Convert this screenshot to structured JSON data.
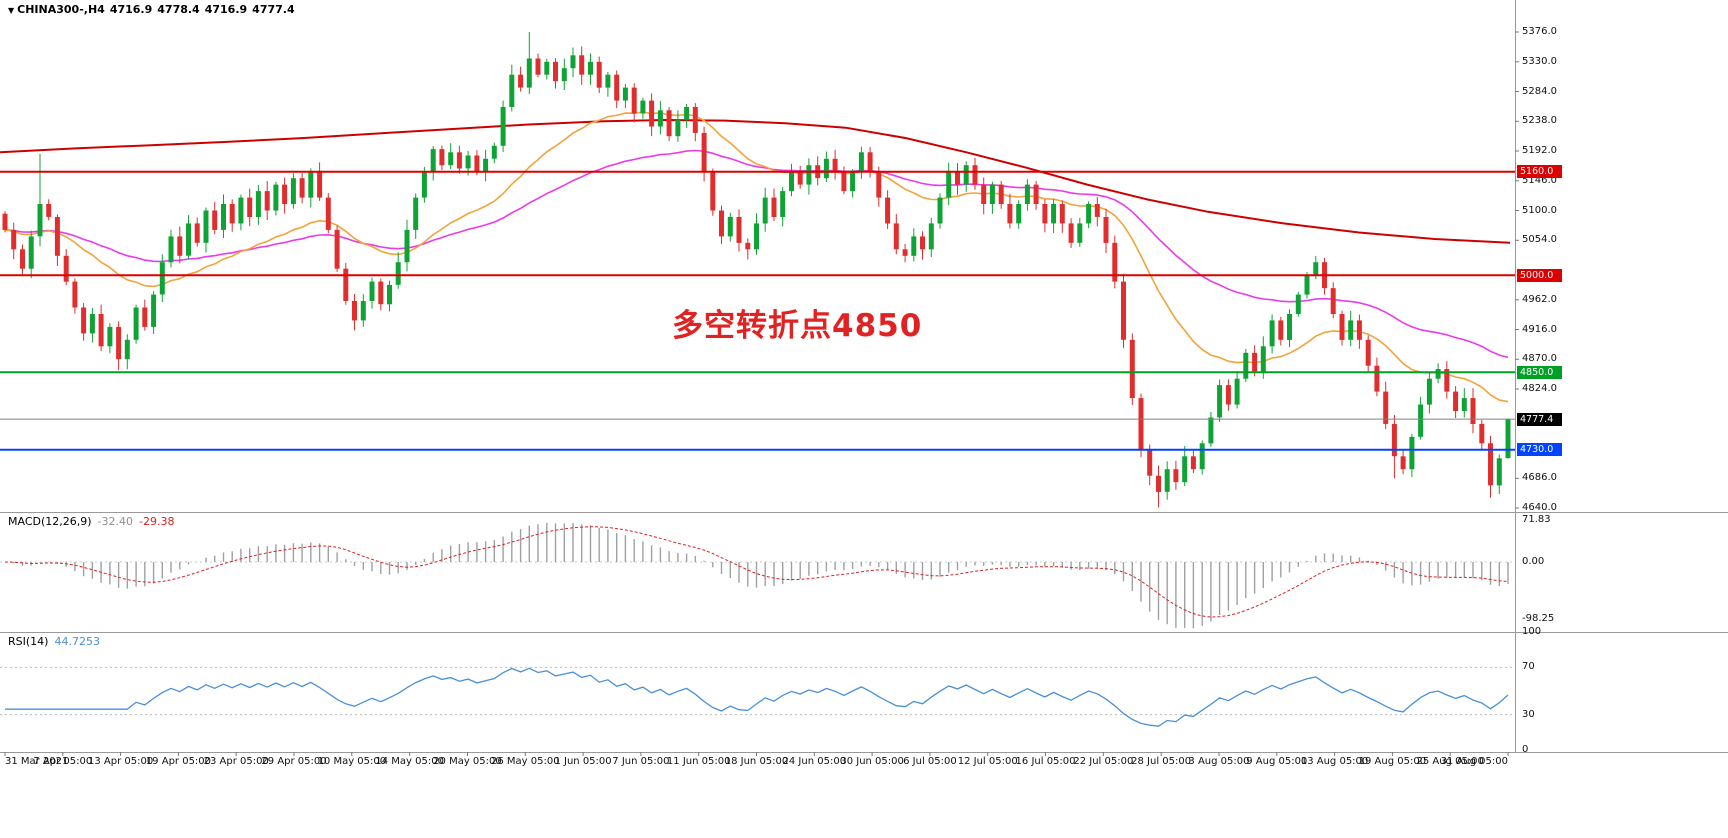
{
  "header": {
    "symbol_period": "CHINA300-,H4",
    "open": "4716.9",
    "high": "4778.4",
    "low": "4716.9",
    "close": "4777.4"
  },
  "annotation": {
    "text": "多空转折点4850",
    "color": "#e02222"
  },
  "levels": [
    {
      "price": 5160.0,
      "label": "5160.0",
      "color": "#dd0000"
    },
    {
      "price": 5000.0,
      "label": "5000.0",
      "color": "#dd0000"
    },
    {
      "price": 4850.0,
      "label": "4850.0",
      "color": "#00a024"
    },
    {
      "price": 4730.0,
      "label": "4730.0",
      "color": "#0044ff"
    }
  ],
  "current_price": {
    "value": 4777.4,
    "label": "4777.4",
    "tag_bg": "#000000",
    "line_color": "#808080"
  },
  "price_axis": {
    "min": 4640,
    "max": 5376,
    "step": 46,
    "labels": [
      "5376.0",
      "5330.0",
      "5284.0",
      "5238.0",
      "5192.0",
      "5146.0",
      "5100.0",
      "5054.0",
      "5008.0",
      "4962.0",
      "4916.0",
      "4870.0",
      "4824.0",
      "4778.0",
      "4732.0",
      "4686.0",
      "4640.0"
    ]
  },
  "time_axis": {
    "labels": [
      "31 Mar 2021",
      "7 Apr 05:00",
      "13 Apr 05:00",
      "19 Apr 05:00",
      "23 Apr 05:00",
      "29 Apr 05:00",
      "10 May 05:00",
      "14 May 05:00",
      "20 May 05:00",
      "26 May 05:00",
      "1 Jun 05:00",
      "7 Jun 05:00",
      "11 Jun 05:00",
      "18 Jun 05:00",
      "24 Jun 05:00",
      "30 Jun 05:00",
      "6 Jul 05:00",
      "12 Jul 05:00",
      "16 Jul 05:00",
      "22 Jul 05:00",
      "28 Jul 05:00",
      "3 Aug 05:00",
      "9 Aug 05:00",
      "13 Aug 05:00",
      "19 Aug 05:00",
      "25 Aug 05:00",
      "31 Aug 05:00"
    ]
  },
  "indicators": {
    "macd": {
      "label": "MACD(12,26,9)",
      "value_main": "-32.40",
      "value_signal": "-29.38",
      "fast": 12,
      "slow": 26,
      "signal": 9,
      "axis_labels": [
        "71.83",
        "0.00",
        "-98.25"
      ],
      "histogram_color": "#a0a0a0",
      "signal_color": "#dd2222"
    },
    "rsi": {
      "label": "RSI(14)",
      "value": "44.7253",
      "period": 14,
      "axis_labels": [
        "100",
        "70",
        "30",
        "0"
      ],
      "levels": [
        70,
        30
      ],
      "line_color": "#4a90d9"
    }
  },
  "moving_averages": [
    {
      "name": "fast-ma",
      "type": "ema",
      "period": 24,
      "color": "#f2a33c"
    },
    {
      "name": "medium-ma",
      "type": "ema",
      "period": 55,
      "color": "#ea3bea"
    },
    {
      "name": "slow-ma",
      "type": "anchors",
      "color": "#cc0000",
      "anchors": [
        [
          0,
          5190
        ],
        [
          0.05,
          5196
        ],
        [
          0.1,
          5201
        ],
        [
          0.15,
          5206
        ],
        [
          0.2,
          5212
        ],
        [
          0.25,
          5219
        ],
        [
          0.3,
          5226
        ],
        [
          0.35,
          5233
        ],
        [
          0.4,
          5238
        ],
        [
          0.44,
          5240
        ],
        [
          0.48,
          5239
        ],
        [
          0.52,
          5235
        ],
        [
          0.56,
          5228
        ],
        [
          0.6,
          5212
        ],
        [
          0.64,
          5190
        ],
        [
          0.68,
          5166
        ],
        [
          0.72,
          5140
        ],
        [
          0.76,
          5117
        ],
        [
          0.8,
          5098
        ],
        [
          0.85,
          5080
        ],
        [
          0.9,
          5066
        ],
        [
          0.95,
          5056
        ],
        [
          1,
          5050
        ]
      ]
    }
  ],
  "chart_data": {
    "type": "candlestick",
    "symbol": "CHINA300-",
    "timeframe": "H4",
    "price_range": [
      4640,
      5376
    ],
    "up_color": "#0fa336",
    "down_color": "#e02e2e",
    "first_open": 5095,
    "closes": [
      5070,
      5040,
      5010,
      5060,
      5110,
      5090,
      5030,
      4990,
      4950,
      4910,
      4940,
      4890,
      4920,
      4870,
      4900,
      4950,
      4920,
      4970,
      5020,
      5060,
      5030,
      5080,
      5050,
      5100,
      5070,
      5110,
      5080,
      5120,
      5090,
      5130,
      5100,
      5140,
      5110,
      5150,
      5120,
      5160,
      5120,
      5070,
      5010,
      4960,
      4930,
      4960,
      4990,
      4955,
      4985,
      5020,
      5070,
      5120,
      5160,
      5195,
      5170,
      5190,
      5165,
      5185,
      5160,
      5180,
      5200,
      5260,
      5310,
      5290,
      5335,
      5310,
      5330,
      5300,
      5320,
      5340,
      5310,
      5330,
      5290,
      5310,
      5270,
      5290,
      5250,
      5270,
      5230,
      5255,
      5215,
      5240,
      5260,
      5220,
      5160,
      5100,
      5060,
      5090,
      5050,
      5040,
      5080,
      5120,
      5090,
      5130,
      5160,
      5140,
      5170,
      5150,
      5180,
      5160,
      5130,
      5160,
      5190,
      5160,
      5120,
      5080,
      5040,
      5030,
      5060,
      5040,
      5080,
      5120,
      5160,
      5140,
      5170,
      5140,
      5110,
      5140,
      5110,
      5080,
      5110,
      5140,
      5110,
      5080,
      5110,
      5080,
      5050,
      5080,
      5110,
      5090,
      5050,
      4990,
      4900,
      4810,
      4730,
      4690,
      4665,
      4700,
      4680,
      4720,
      4700,
      4740,
      4780,
      4830,
      4800,
      4840,
      4880,
      4850,
      4890,
      4930,
      4900,
      4940,
      4970,
      5000,
      5020,
      4980,
      4940,
      4900,
      4930,
      4900,
      4860,
      4820,
      4770,
      4720,
      4700,
      4750,
      4800,
      4840,
      4855,
      4820,
      4790,
      4810,
      4770,
      4740,
      4675,
      4716.9,
      4777.4
    ],
    "wick_overrides": {
      "4": {
        "high": 5188
      },
      "13": {
        "low": 4853
      },
      "60": {
        "high": 5376
      },
      "65": {
        "high": 5352
      },
      "132": {
        "low": 4641
      },
      "159": {
        "low": 4686
      },
      "170": {
        "low": 4656
      },
      "172": {
        "high": 4778.4,
        "low": 4716.9
      }
    }
  }
}
